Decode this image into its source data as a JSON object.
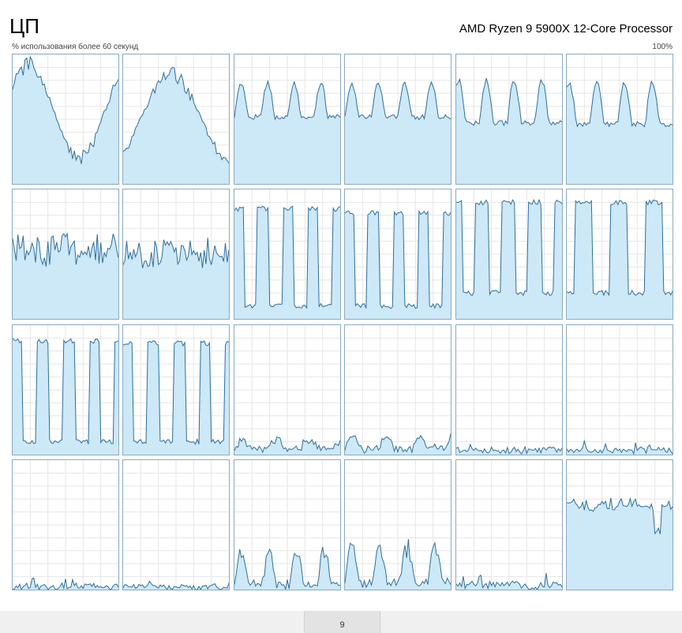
{
  "header": {
    "title": "ЦП",
    "processor_name": "AMD Ryzen 9 5900X 12-Core Processor",
    "usage_label": "% использования более 60 секунд",
    "max_label": "100%"
  },
  "graph_style": {
    "line_color": "#2f6f9c",
    "fill_color": "#cde8f7",
    "border_color": "#8aa9c1",
    "grid_color": "#e6e6e6"
  },
  "footer": {
    "page_number": "9"
  },
  "cores": [
    {
      "pattern": "heavy_a",
      "min": 15,
      "max": 97
    },
    {
      "pattern": "heavy_b",
      "min": 10,
      "max": 90
    },
    {
      "pattern": "wave_a",
      "min": 30,
      "max": 78
    },
    {
      "pattern": "wave_a",
      "min": 30,
      "max": 78
    },
    {
      "pattern": "wave_b",
      "min": 25,
      "max": 80
    },
    {
      "pattern": "wave_b",
      "min": 25,
      "max": 78
    },
    {
      "pattern": "noisy",
      "min": 30,
      "max": 65
    },
    {
      "pattern": "noisy",
      "min": 30,
      "max": 62
    },
    {
      "pattern": "square_a",
      "min": 10,
      "max": 85
    },
    {
      "pattern": "square_a",
      "min": 10,
      "max": 82
    },
    {
      "pattern": "square_b",
      "min": 20,
      "max": 90
    },
    {
      "pattern": "square_c",
      "min": 20,
      "max": 90
    },
    {
      "pattern": "square_d",
      "min": 10,
      "max": 88
    },
    {
      "pattern": "square_d",
      "min": 10,
      "max": 86
    },
    {
      "pattern": "low",
      "min": 2,
      "max": 14
    },
    {
      "pattern": "low",
      "min": 2,
      "max": 16
    },
    {
      "pattern": "verylow",
      "min": 2,
      "max": 9
    },
    {
      "pattern": "verylow",
      "min": 2,
      "max": 9
    },
    {
      "pattern": "verylow",
      "min": 1,
      "max": 8
    },
    {
      "pattern": "verylow",
      "min": 1,
      "max": 7
    },
    {
      "pattern": "bumps",
      "min": 2,
      "max": 32
    },
    {
      "pattern": "bumps",
      "min": 3,
      "max": 38
    },
    {
      "pattern": "verylow",
      "min": 1,
      "max": 12
    },
    {
      "pattern": "plateau",
      "min": 40,
      "max": 70
    }
  ]
}
